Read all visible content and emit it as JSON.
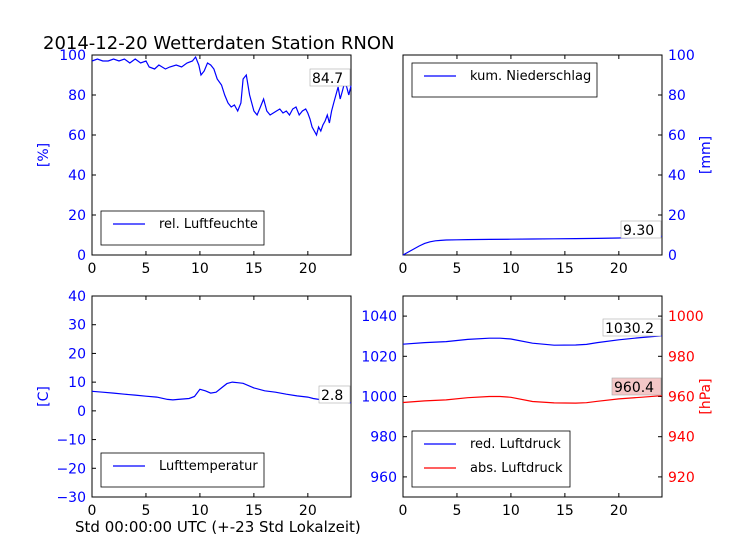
{
  "figure": {
    "title": "2014-12-20 Wetterdaten Station RNON",
    "xlabel": "Std 00:00:00 UTC (+-23 Std Lokalzeit)"
  },
  "chart_data": [
    {
      "type": "line",
      "panel": "top-left",
      "ylabel": "[%]",
      "y_axis_side": "left",
      "axis_color": "#0000ff",
      "xlim": [
        0,
        24
      ],
      "ylim": [
        0,
        100
      ],
      "x_ticks": [
        0,
        5,
        10,
        15,
        20
      ],
      "y_ticks": [
        0,
        20,
        40,
        60,
        80,
        100
      ],
      "legend_position": "lower-left",
      "annotation": "84.7",
      "series": [
        {
          "name": "rel. Luftfeuchte",
          "color": "#0000ff",
          "x": [
            0,
            0.5,
            1,
            1.5,
            2,
            2.5,
            3,
            3.5,
            4,
            4.5,
            5,
            5.3,
            5.8,
            6.2,
            6.8,
            7.2,
            7.8,
            8.3,
            8.8,
            9.3,
            9.6,
            9.9,
            10.1,
            10.4,
            10.7,
            11,
            11.3,
            11.6,
            12,
            12.3,
            12.6,
            12.9,
            13.2,
            13.5,
            13.8,
            14,
            14.3,
            14.6,
            15,
            15.3,
            15.6,
            15.9,
            16.2,
            16.5,
            16.8,
            17.1,
            17.4,
            17.7,
            18,
            18.3,
            18.6,
            18.9,
            19.2,
            19.5,
            19.8,
            20,
            20.2,
            20.4,
            20.6,
            20.8,
            21,
            21.2,
            21.4,
            21.6,
            21.8,
            22,
            22.2,
            22.4,
            22.6,
            22.8,
            23,
            23.2,
            23.4,
            23.6,
            23.8,
            24
          ],
          "y": [
            97,
            98,
            97,
            97,
            98,
            97,
            98,
            96,
            98,
            96,
            97,
            94,
            93,
            95,
            93,
            94,
            95,
            94,
            96,
            97,
            99,
            95,
            90,
            92,
            96,
            95,
            93,
            88,
            85,
            80,
            76,
            74,
            75,
            72,
            76,
            88,
            90,
            80,
            72,
            70,
            74,
            78,
            72,
            70,
            71,
            72,
            73,
            71,
            72,
            70,
            73,
            74,
            70,
            72,
            73,
            71,
            68,
            64,
            62,
            60,
            64,
            62,
            65,
            67,
            70,
            66,
            72,
            76,
            80,
            84,
            78,
            82,
            86,
            84,
            80,
            84.7
          ]
        }
      ]
    },
    {
      "type": "line",
      "panel": "top-right",
      "ylabel": "[mm]",
      "y_axis_side": "right",
      "axis_color": "#0000ff",
      "xlim": [
        0,
        24
      ],
      "ylim": [
        0,
        100
      ],
      "x_ticks": [
        0,
        5,
        10,
        15,
        20
      ],
      "y_ticks": [
        0,
        20,
        40,
        60,
        80,
        100
      ],
      "legend_position": "upper-left",
      "annotation": "9.30",
      "series": [
        {
          "name": "kum. Niederschlag",
          "color": "#0000ff",
          "x": [
            0,
            0.5,
            1,
            1.5,
            2,
            2.5,
            3,
            3.5,
            4,
            5,
            6,
            8,
            10,
            12,
            14,
            16,
            18,
            20,
            22,
            24
          ],
          "y": [
            0,
            1.5,
            3,
            4.5,
            5.8,
            6.6,
            7.1,
            7.3,
            7.5,
            7.6,
            7.7,
            7.8,
            7.9,
            8.0,
            8.1,
            8.2,
            8.3,
            8.5,
            8.9,
            9.3
          ]
        }
      ]
    },
    {
      "type": "line",
      "panel": "bottom-left",
      "ylabel": "[C]",
      "y_axis_side": "left",
      "axis_color": "#0000ff",
      "xlim": [
        0,
        24
      ],
      "ylim": [
        -30,
        40
      ],
      "x_ticks": [
        0,
        5,
        10,
        15,
        20
      ],
      "y_ticks": [
        -30,
        -20,
        -10,
        0,
        10,
        20,
        30,
        40
      ],
      "legend_position": "lower-left",
      "annotation": "2.8",
      "series": [
        {
          "name": "Lufttemperatur",
          "color": "#0000ff",
          "x": [
            0,
            1,
            2,
            3,
            4,
            5,
            6,
            7,
            7.5,
            8,
            9,
            9.5,
            10,
            10.5,
            11,
            11.5,
            12,
            12.5,
            13,
            13.5,
            14,
            15,
            16,
            17,
            18,
            19,
            20,
            20.5,
            21,
            21.5,
            22,
            22.5,
            23,
            23.5,
            24
          ],
          "y": [
            6.8,
            6.5,
            6.2,
            5.8,
            5.5,
            5.1,
            4.8,
            4.0,
            3.8,
            4.0,
            4.3,
            5.0,
            7.5,
            7.0,
            6.2,
            6.5,
            8.0,
            9.5,
            10.0,
            9.8,
            9.6,
            8.0,
            7.0,
            6.5,
            5.8,
            5.2,
            4.8,
            4.3,
            4.0,
            4.5,
            3.7,
            3.2,
            3.5,
            3.0,
            2.8
          ]
        }
      ]
    },
    {
      "type": "line",
      "panel": "bottom-right",
      "ylabel": "[hPa]",
      "left_axis_color": "#0000ff",
      "right_axis_color": "#ff0000",
      "xlim": [
        0,
        24
      ],
      "ylim_left": [
        950,
        1050
      ],
      "ylim_right": [
        910,
        1010
      ],
      "x_ticks": [
        0,
        5,
        10,
        15,
        20
      ],
      "y_ticks_left": [
        960,
        980,
        1000,
        1020,
        1040
      ],
      "y_ticks_right": [
        920,
        940,
        960,
        980,
        1000
      ],
      "legend_position": "lower-left",
      "annotations": [
        "1030.2",
        "960.4"
      ],
      "series": [
        {
          "name": "red. Luftdruck",
          "color": "#0000ff",
          "axis": "left",
          "x": [
            0,
            2,
            4,
            6,
            8,
            9,
            10,
            12,
            14,
            16,
            17,
            18,
            20,
            22,
            24
          ],
          "y": [
            1026,
            1026.8,
            1027.3,
            1028.4,
            1029,
            1029,
            1028.6,
            1026.5,
            1025.5,
            1025.6,
            1025.9,
            1026.8,
            1028.2,
            1029.3,
            1030.2
          ]
        },
        {
          "name": "abs. Luftdruck",
          "color": "#ff0000",
          "axis": "right",
          "x": [
            0,
            2,
            4,
            6,
            8,
            9,
            10,
            12,
            14,
            16,
            17,
            18,
            20,
            22,
            24
          ],
          "y": [
            957,
            957.8,
            958.3,
            959.4,
            960,
            960,
            959.6,
            957.5,
            956.8,
            956.7,
            956.9,
            957.6,
            958.8,
            959.6,
            960.4
          ]
        }
      ]
    }
  ]
}
